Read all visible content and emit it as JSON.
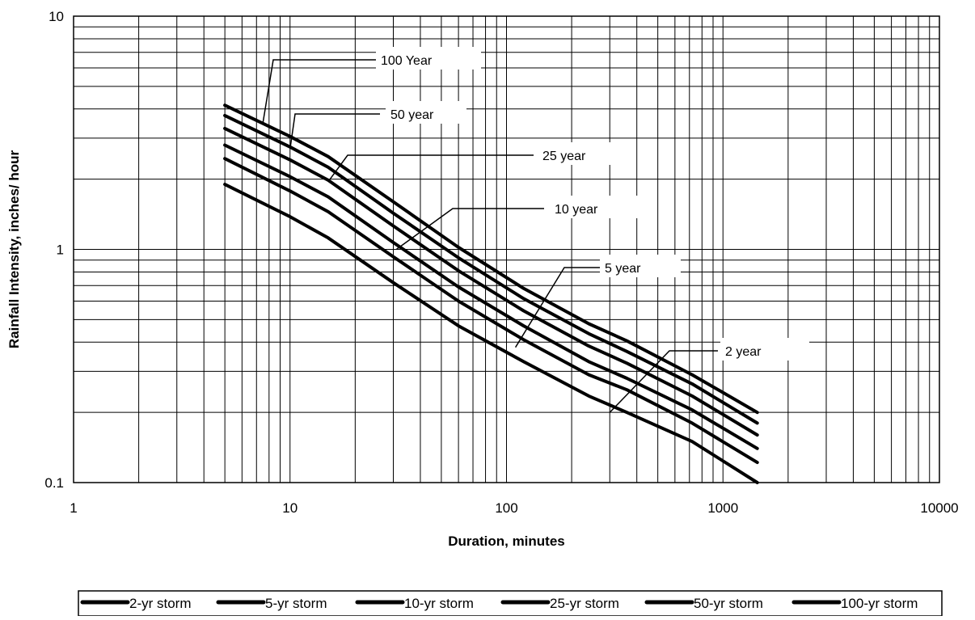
{
  "chart_data": {
    "type": "line",
    "title": "",
    "xlabel": "Duration, minutes",
    "ylabel": "Rainfall Intensity, inches/ hour",
    "x_scale": "log",
    "y_scale": "log",
    "xlim": [
      1,
      10000
    ],
    "ylim": [
      0.1,
      10
    ],
    "grid": true,
    "x_tick_labels": [
      "1",
      "10",
      "100",
      "1000",
      "10000"
    ],
    "y_tick_labels": [
      "0.1",
      "1",
      "10"
    ],
    "legend_position": "bottom",
    "series": [
      {
        "name": "2-yr storm",
        "x": [
          5,
          10,
          15,
          30,
          60,
          120,
          240,
          360,
          720,
          1440
        ],
        "y": [
          1.9,
          1.38,
          1.12,
          0.72,
          0.47,
          0.33,
          0.235,
          0.2,
          0.15,
          0.1
        ]
      },
      {
        "name": "5-yr storm",
        "x": [
          5,
          10,
          15,
          30,
          60,
          120,
          240,
          360,
          720,
          1440
        ],
        "y": [
          2.45,
          1.78,
          1.45,
          0.93,
          0.6,
          0.41,
          0.29,
          0.25,
          0.18,
          0.122
        ]
      },
      {
        "name": "10-yr storm",
        "x": [
          5,
          10,
          15,
          30,
          60,
          120,
          240,
          360,
          720,
          1440
        ],
        "y": [
          2.8,
          2.05,
          1.68,
          1.07,
          0.69,
          0.47,
          0.33,
          0.28,
          0.205,
          0.14
        ]
      },
      {
        "name": "25-yr storm",
        "x": [
          5,
          10,
          15,
          30,
          60,
          120,
          240,
          360,
          720,
          1440
        ],
        "y": [
          3.3,
          2.42,
          1.98,
          1.26,
          0.81,
          0.545,
          0.385,
          0.325,
          0.235,
          0.16
        ]
      },
      {
        "name": "50-yr storm",
        "x": [
          5,
          10,
          15,
          30,
          60,
          120,
          240,
          360,
          720,
          1440
        ],
        "y": [
          3.75,
          2.75,
          2.25,
          1.43,
          0.92,
          0.615,
          0.435,
          0.365,
          0.265,
          0.18
        ]
      },
      {
        "name": "100-yr storm",
        "x": [
          5,
          10,
          15,
          30,
          60,
          120,
          240,
          360,
          720,
          1440
        ],
        "y": [
          4.15,
          3.05,
          2.5,
          1.6,
          1.02,
          0.68,
          0.48,
          0.405,
          0.29,
          0.2
        ]
      }
    ],
    "annotations": [
      {
        "text": "100 Year",
        "series": "100-yr storm",
        "target": [
          7.5,
          3.5
        ]
      },
      {
        "text": "50 year",
        "series": "50-yr storm",
        "target": [
          10,
          2.7
        ]
      },
      {
        "text": "25 year",
        "series": "25-yr storm",
        "target": [
          15,
          1.95
        ]
      },
      {
        "text": "10 year",
        "series": "10-yr storm",
        "target": [
          31,
          1.0
        ]
      },
      {
        "text": "5 year",
        "series": "5-yr storm",
        "target": [
          110,
          0.38
        ]
      },
      {
        "text": "2 year",
        "series": "2-yr storm",
        "target": [
          300,
          0.2
        ]
      }
    ]
  }
}
